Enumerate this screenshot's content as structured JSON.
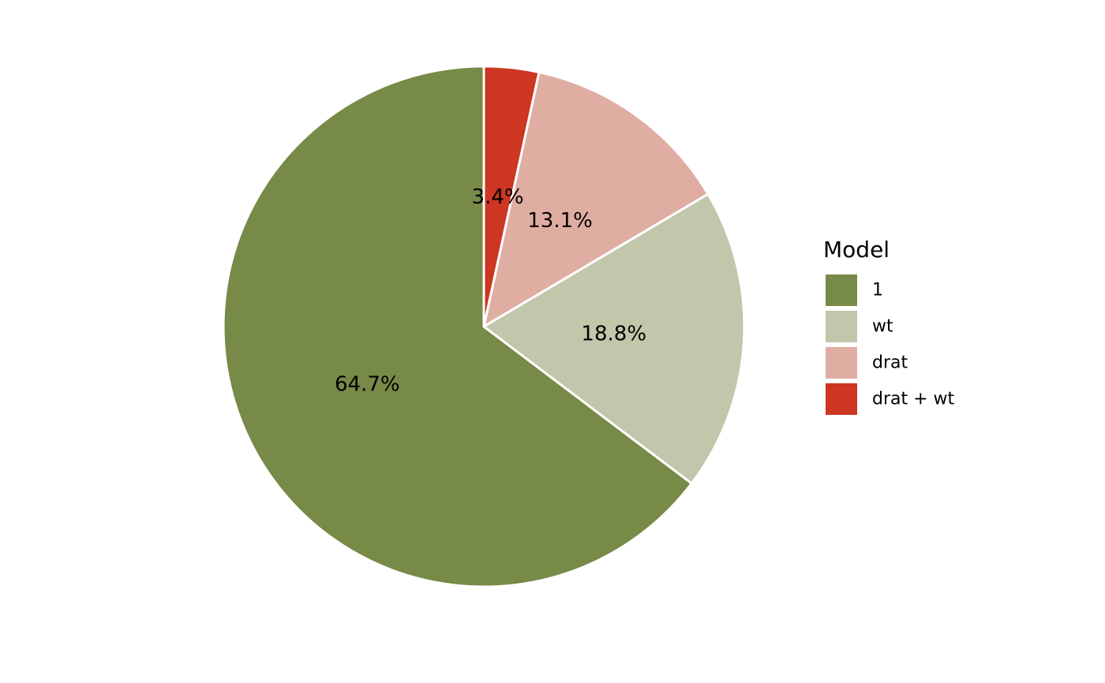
{
  "chart_data": {
    "type": "pie",
    "categories": [
      "1",
      "wt",
      "drat",
      "drat + wt"
    ],
    "values": [
      64.7,
      18.8,
      13.1,
      3.4
    ],
    "labels": [
      "64.7%",
      "18.8%",
      "13.1%",
      "3.4%"
    ],
    "unit": "%",
    "start_angle": "12 o'clock",
    "direction": "counterclockwise",
    "colors": [
      "#778a47",
      "#c2c6ab",
      "#e0ada2",
      "#cc3623"
    ],
    "slice_border_color": "#ffffff",
    "legend": {
      "title": "Model",
      "placement": "right",
      "entries": [
        "1",
        "wt",
        "drat",
        "drat + wt"
      ]
    }
  }
}
